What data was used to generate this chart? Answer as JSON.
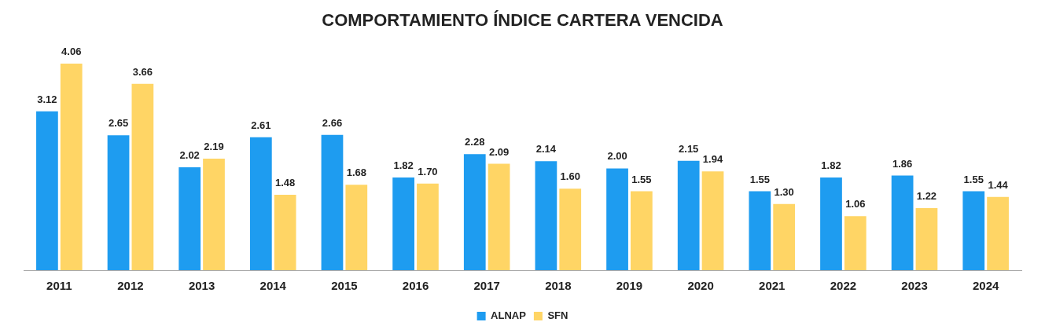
{
  "chart_data": {
    "type": "bar",
    "title": "COMPORTAMIENTO ÍNDICE CARTERA VENCIDA",
    "categories": [
      "2011",
      "2012",
      "2013",
      "2014",
      "2015",
      "2016",
      "2017",
      "2018",
      "2019",
      "2020",
      "2021",
      "2022",
      "2023",
      "2024"
    ],
    "series": [
      {
        "name": "ALNAP",
        "color": "#1e9cf0",
        "values": [
          3.12,
          2.65,
          2.02,
          2.61,
          2.66,
          1.82,
          2.28,
          2.14,
          2.0,
          2.15,
          1.55,
          1.82,
          1.86,
          1.55
        ],
        "value_labels": [
          "3.12",
          "2.65",
          "2.02",
          "2.61",
          "2.66",
          "1.82",
          "2.28",
          "2.14",
          "2.00",
          "2.15",
          "1.55",
          "1.82",
          "1.86",
          "1.55"
        ]
      },
      {
        "name": "SFN",
        "color": "#ffd565",
        "values": [
          4.06,
          3.66,
          2.19,
          1.48,
          1.68,
          1.7,
          2.09,
          1.6,
          1.55,
          1.94,
          1.3,
          1.06,
          1.22,
          1.44
        ],
        "value_labels": [
          "4.06",
          "3.66",
          "2.19",
          "1.48",
          "1.68",
          "1.70",
          "2.09",
          "1.60",
          "1.55",
          "1.94",
          "1.30",
          "1.06",
          "1.22",
          "1.44"
        ]
      }
    ],
    "legend": "bottom",
    "grid": false
  }
}
